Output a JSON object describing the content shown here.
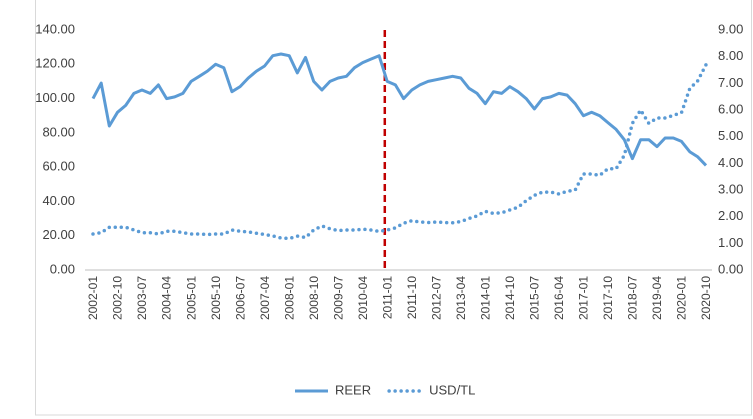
{
  "chart_data": {
    "type": "line",
    "categories": [
      "2002-01",
      null,
      null,
      "2002-10",
      null,
      null,
      "2003-07",
      null,
      null,
      "2004-04",
      null,
      null,
      "2005-01",
      null,
      null,
      "2005-10",
      null,
      null,
      "2006-07",
      null,
      null,
      "2007-04",
      null,
      null,
      "2008-01",
      null,
      null,
      "2008-10",
      null,
      null,
      "2009-07",
      null,
      null,
      "2010-04",
      null,
      null,
      "2011-01",
      null,
      null,
      "2011-10",
      null,
      null,
      "2012-07",
      null,
      null,
      "2013-04",
      null,
      null,
      "2014-01",
      null,
      null,
      "2014-10",
      null,
      null,
      "2015-07",
      null,
      null,
      "2016-04",
      null,
      null,
      "2017-01",
      null,
      null,
      "2017-10",
      null,
      null,
      "2018-07",
      null,
      null,
      "2019-04",
      null,
      null,
      "2020-01",
      null,
      null,
      "2020-10"
    ],
    "series": [
      {
        "name": "REER",
        "color": "#5b9bd5",
        "style": "solid",
        "axis": "y",
        "values": [
          100,
          109,
          84,
          92,
          96,
          103,
          105,
          103,
          108,
          100,
          101,
          103,
          110,
          113,
          116,
          120,
          118,
          104,
          107,
          112,
          116,
          119,
          125,
          126,
          125,
          115,
          124,
          110,
          105,
          110,
          112,
          113,
          118,
          121,
          123,
          125,
          110,
          108,
          100,
          105,
          108,
          110,
          111,
          112,
          113,
          112,
          106,
          103,
          97,
          104,
          103,
          107,
          104,
          100,
          94,
          100,
          101,
          103,
          102,
          97,
          90,
          92,
          90,
          86,
          82,
          76,
          65,
          76,
          76,
          72,
          77,
          77,
          75,
          69,
          66,
          61
        ]
      },
      {
        "name": "USD/TL",
        "color": "#5b9bd5",
        "style": "dotted",
        "axis": "y2",
        "values": [
          1.35,
          1.4,
          1.6,
          1.6,
          1.6,
          1.5,
          1.4,
          1.4,
          1.35,
          1.45,
          1.45,
          1.4,
          1.35,
          1.35,
          1.33,
          1.35,
          1.35,
          1.5,
          1.45,
          1.43,
          1.38,
          1.33,
          1.28,
          1.2,
          1.18,
          1.27,
          1.22,
          1.5,
          1.65,
          1.55,
          1.48,
          1.5,
          1.5,
          1.53,
          1.5,
          1.45,
          1.5,
          1.58,
          1.75,
          1.85,
          1.8,
          1.78,
          1.8,
          1.78,
          1.77,
          1.82,
          1.93,
          2.03,
          2.2,
          2.12,
          2.15,
          2.25,
          2.35,
          2.6,
          2.8,
          2.92,
          2.92,
          2.85,
          2.95,
          3.0,
          3.6,
          3.6,
          3.55,
          3.8,
          3.8,
          4.3,
          5.5,
          6.0,
          5.5,
          5.7,
          5.7,
          5.8,
          5.9,
          6.8,
          7.1,
          7.7
        ]
      }
    ],
    "ylim": [
      0,
      140
    ],
    "yticks": [
      {
        "value": 0,
        "label": "0.00"
      },
      {
        "value": 20,
        "label": "20.00"
      },
      {
        "value": 40,
        "label": "40.00"
      },
      {
        "value": 60,
        "label": "60.00"
      },
      {
        "value": 80,
        "label": "80.00"
      },
      {
        "value": 100,
        "label": "100.00"
      },
      {
        "value": 120,
        "label": "120.00"
      },
      {
        "value": 140,
        "label": "140.00"
      }
    ],
    "y2lim": [
      0,
      9
    ],
    "y2ticks": [
      {
        "value": 0,
        "label": "0.00"
      },
      {
        "value": 1,
        "label": "1.00"
      },
      {
        "value": 2,
        "label": "2.00"
      },
      {
        "value": 3,
        "label": "3.00"
      },
      {
        "value": 4,
        "label": "4.00"
      },
      {
        "value": 5,
        "label": "5.00"
      },
      {
        "value": 6,
        "label": "6.00"
      },
      {
        "value": 7,
        "label": "7.00"
      },
      {
        "value": 8,
        "label": "8.00"
      },
      {
        "value": 9,
        "label": "9.00"
      }
    ],
    "grid": false,
    "legend": "bottom"
  }
}
